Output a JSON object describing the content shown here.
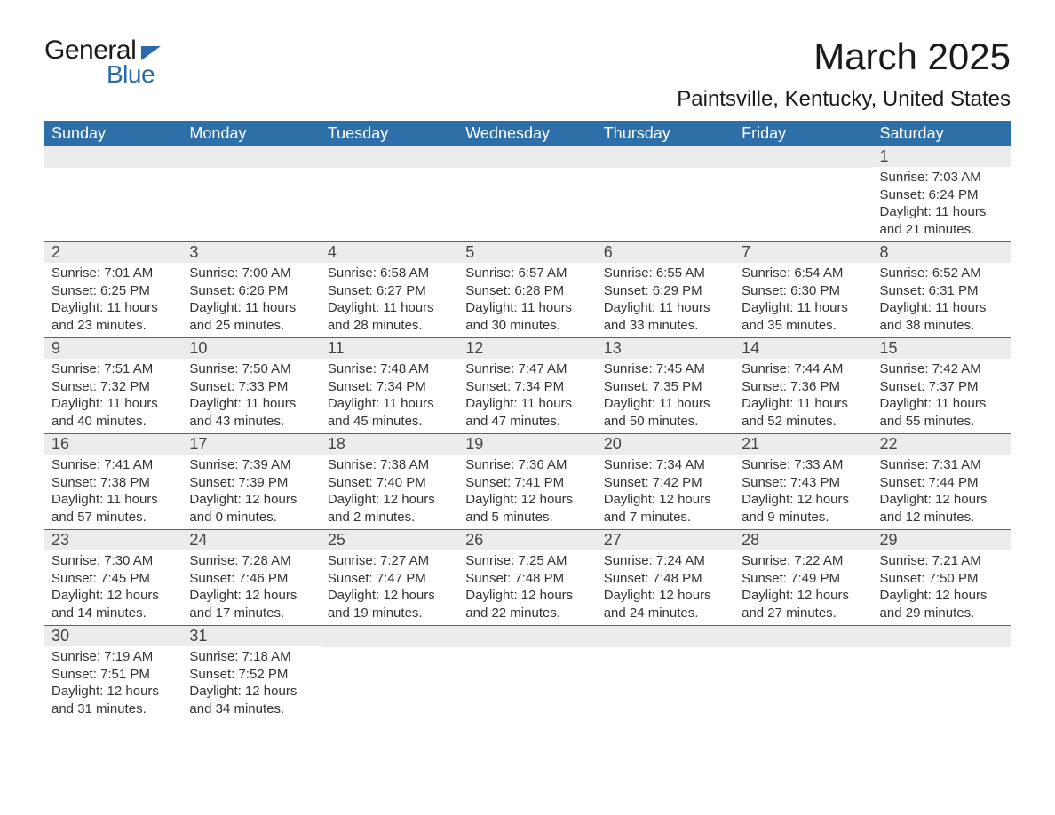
{
  "logo": {
    "text1": "General",
    "text2": "Blue"
  },
  "title": "March 2025",
  "location": "Paintsville, Kentucky, United States",
  "colors": {
    "header_bg": "#2d6fa8",
    "header_text": "#ffffff",
    "daynum_bg": "#ececec",
    "daynum_text": "#444444",
    "body_text": "#333333",
    "border": "#2d6fa8",
    "page_bg": "#ffffff",
    "logo_blue": "#2b6aa8"
  },
  "typography": {
    "title_fontsize": 42,
    "location_fontsize": 24,
    "header_fontsize": 18,
    "daynum_fontsize": 18,
    "body_fontsize": 15
  },
  "layout": {
    "columns": 7,
    "rows": 6,
    "start_weekday_index": 6
  },
  "weekdays": [
    "Sunday",
    "Monday",
    "Tuesday",
    "Wednesday",
    "Thursday",
    "Friday",
    "Saturday"
  ],
  "days": [
    {
      "n": 1,
      "sunrise": "7:03 AM",
      "sunset": "6:24 PM",
      "daylight": "11 hours and 21 minutes."
    },
    {
      "n": 2,
      "sunrise": "7:01 AM",
      "sunset": "6:25 PM",
      "daylight": "11 hours and 23 minutes."
    },
    {
      "n": 3,
      "sunrise": "7:00 AM",
      "sunset": "6:26 PM",
      "daylight": "11 hours and 25 minutes."
    },
    {
      "n": 4,
      "sunrise": "6:58 AM",
      "sunset": "6:27 PM",
      "daylight": "11 hours and 28 minutes."
    },
    {
      "n": 5,
      "sunrise": "6:57 AM",
      "sunset": "6:28 PM",
      "daylight": "11 hours and 30 minutes."
    },
    {
      "n": 6,
      "sunrise": "6:55 AM",
      "sunset": "6:29 PM",
      "daylight": "11 hours and 33 minutes."
    },
    {
      "n": 7,
      "sunrise": "6:54 AM",
      "sunset": "6:30 PM",
      "daylight": "11 hours and 35 minutes."
    },
    {
      "n": 8,
      "sunrise": "6:52 AM",
      "sunset": "6:31 PM",
      "daylight": "11 hours and 38 minutes."
    },
    {
      "n": 9,
      "sunrise": "7:51 AM",
      "sunset": "7:32 PM",
      "daylight": "11 hours and 40 minutes."
    },
    {
      "n": 10,
      "sunrise": "7:50 AM",
      "sunset": "7:33 PM",
      "daylight": "11 hours and 43 minutes."
    },
    {
      "n": 11,
      "sunrise": "7:48 AM",
      "sunset": "7:34 PM",
      "daylight": "11 hours and 45 minutes."
    },
    {
      "n": 12,
      "sunrise": "7:47 AM",
      "sunset": "7:34 PM",
      "daylight": "11 hours and 47 minutes."
    },
    {
      "n": 13,
      "sunrise": "7:45 AM",
      "sunset": "7:35 PM",
      "daylight": "11 hours and 50 minutes."
    },
    {
      "n": 14,
      "sunrise": "7:44 AM",
      "sunset": "7:36 PM",
      "daylight": "11 hours and 52 minutes."
    },
    {
      "n": 15,
      "sunrise": "7:42 AM",
      "sunset": "7:37 PM",
      "daylight": "11 hours and 55 minutes."
    },
    {
      "n": 16,
      "sunrise": "7:41 AM",
      "sunset": "7:38 PM",
      "daylight": "11 hours and 57 minutes."
    },
    {
      "n": 17,
      "sunrise": "7:39 AM",
      "sunset": "7:39 PM",
      "daylight": "12 hours and 0 minutes."
    },
    {
      "n": 18,
      "sunrise": "7:38 AM",
      "sunset": "7:40 PM",
      "daylight": "12 hours and 2 minutes."
    },
    {
      "n": 19,
      "sunrise": "7:36 AM",
      "sunset": "7:41 PM",
      "daylight": "12 hours and 5 minutes."
    },
    {
      "n": 20,
      "sunrise": "7:34 AM",
      "sunset": "7:42 PM",
      "daylight": "12 hours and 7 minutes."
    },
    {
      "n": 21,
      "sunrise": "7:33 AM",
      "sunset": "7:43 PM",
      "daylight": "12 hours and 9 minutes."
    },
    {
      "n": 22,
      "sunrise": "7:31 AM",
      "sunset": "7:44 PM",
      "daylight": "12 hours and 12 minutes."
    },
    {
      "n": 23,
      "sunrise": "7:30 AM",
      "sunset": "7:45 PM",
      "daylight": "12 hours and 14 minutes."
    },
    {
      "n": 24,
      "sunrise": "7:28 AM",
      "sunset": "7:46 PM",
      "daylight": "12 hours and 17 minutes."
    },
    {
      "n": 25,
      "sunrise": "7:27 AM",
      "sunset": "7:47 PM",
      "daylight": "12 hours and 19 minutes."
    },
    {
      "n": 26,
      "sunrise": "7:25 AM",
      "sunset": "7:48 PM",
      "daylight": "12 hours and 22 minutes."
    },
    {
      "n": 27,
      "sunrise": "7:24 AM",
      "sunset": "7:48 PM",
      "daylight": "12 hours and 24 minutes."
    },
    {
      "n": 28,
      "sunrise": "7:22 AM",
      "sunset": "7:49 PM",
      "daylight": "12 hours and 27 minutes."
    },
    {
      "n": 29,
      "sunrise": "7:21 AM",
      "sunset": "7:50 PM",
      "daylight": "12 hours and 29 minutes."
    },
    {
      "n": 30,
      "sunrise": "7:19 AM",
      "sunset": "7:51 PM",
      "daylight": "12 hours and 31 minutes."
    },
    {
      "n": 31,
      "sunrise": "7:18 AM",
      "sunset": "7:52 PM",
      "daylight": "12 hours and 34 minutes."
    }
  ],
  "labels": {
    "sunrise": "Sunrise:",
    "sunset": "Sunset:",
    "daylight": "Daylight:"
  }
}
